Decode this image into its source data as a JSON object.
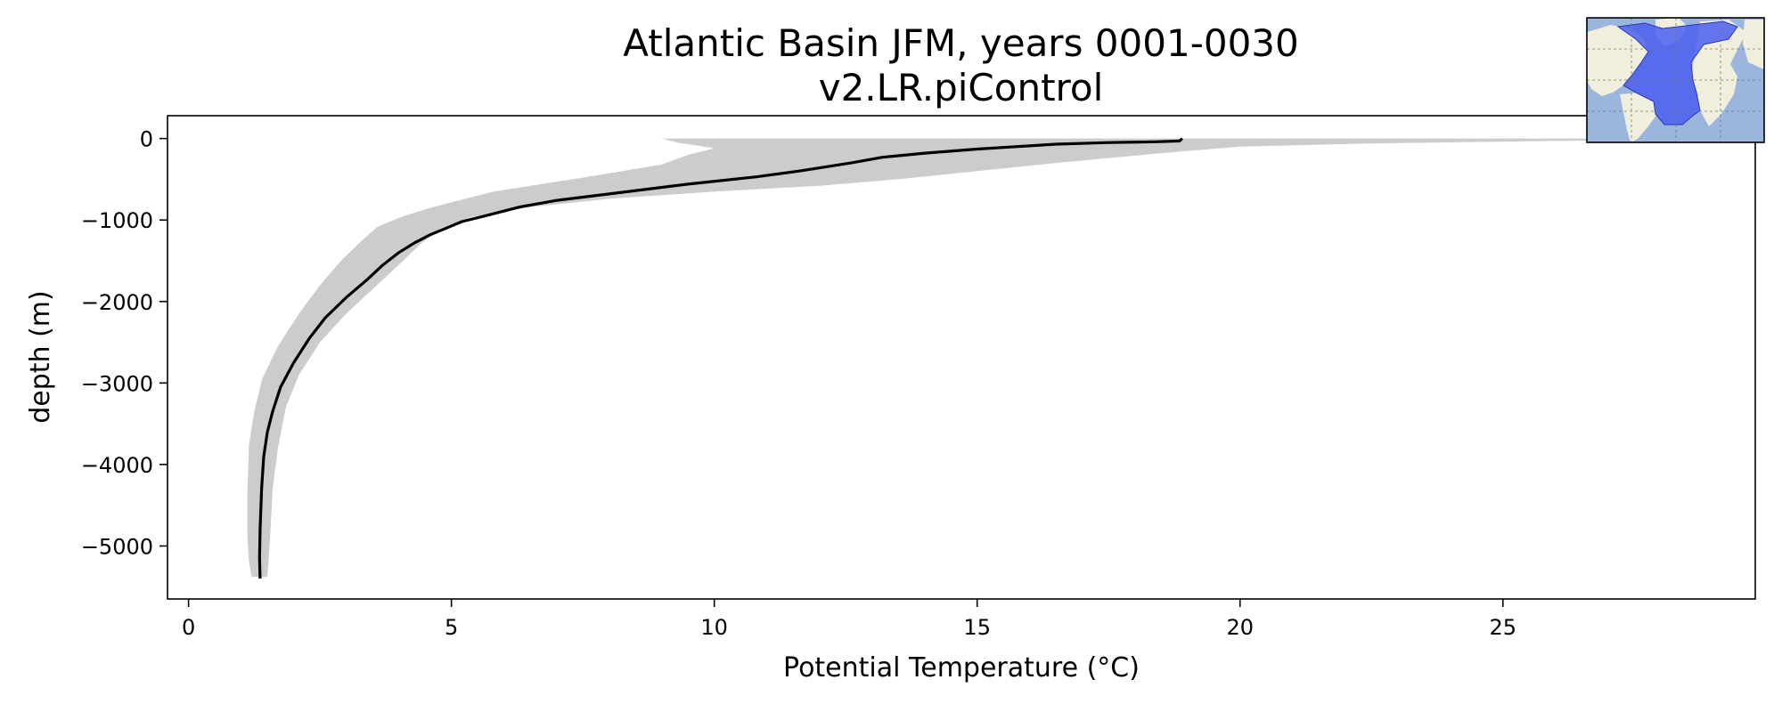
{
  "chart_data": {
    "type": "line",
    "title": "Atlantic Basin JFM, years 0001-0030",
    "subtitle": "v2.LR.piControl",
    "xlabel": "Potential Temperature (°C)",
    "ylabel": "depth (m)",
    "xlim": [
      -0.4,
      29.8
    ],
    "ylim": [
      -5650,
      280
    ],
    "xticks": [
      0,
      5,
      10,
      15,
      20,
      25
    ],
    "yticks": [
      0,
      -1000,
      -2000,
      -3000,
      -4000,
      -5000
    ],
    "xtick_labels": [
      "0",
      "5",
      "10",
      "15",
      "20",
      "25"
    ],
    "ytick_labels": [
      "0",
      "−1000",
      "−2000",
      "−3000",
      "−4000",
      "−5000"
    ],
    "grid": false,
    "series": [
      {
        "role": "mean",
        "color": "#000000",
        "points": [
          [
            18.9,
            0
          ],
          [
            18.85,
            -30
          ],
          [
            18.4,
            -40
          ],
          [
            17.5,
            -50
          ],
          [
            16.5,
            -70
          ],
          [
            15.0,
            -130
          ],
          [
            14.0,
            -180
          ],
          [
            13.2,
            -230
          ],
          [
            12.6,
            -300
          ],
          [
            11.6,
            -400
          ],
          [
            10.8,
            -470
          ],
          [
            9.5,
            -560
          ],
          [
            8.0,
            -680
          ],
          [
            7.0,
            -760
          ],
          [
            6.3,
            -840
          ],
          [
            5.7,
            -940
          ],
          [
            5.2,
            -1020
          ],
          [
            4.9,
            -1100
          ],
          [
            4.6,
            -1180
          ],
          [
            4.3,
            -1280
          ],
          [
            4.0,
            -1400
          ],
          [
            3.7,
            -1550
          ],
          [
            3.4,
            -1730
          ],
          [
            3.0,
            -1950
          ],
          [
            2.6,
            -2200
          ],
          [
            2.3,
            -2450
          ],
          [
            2.0,
            -2750
          ],
          [
            1.75,
            -3050
          ],
          [
            1.6,
            -3350
          ],
          [
            1.5,
            -3600
          ],
          [
            1.43,
            -3900
          ],
          [
            1.39,
            -4300
          ],
          [
            1.36,
            -4800
          ],
          [
            1.35,
            -5150
          ],
          [
            1.36,
            -5400
          ]
        ]
      },
      {
        "role": "range",
        "color": "#cccccc",
        "upper": [
          [
            29.5,
            0
          ],
          [
            26.0,
            -30
          ],
          [
            22.5,
            -60
          ],
          [
            20.0,
            -100
          ],
          [
            18.5,
            -180
          ],
          [
            16.5,
            -300
          ],
          [
            15.0,
            -400
          ],
          [
            13.5,
            -500
          ],
          [
            12.0,
            -580
          ],
          [
            10.0,
            -650
          ],
          [
            8.0,
            -740
          ],
          [
            6.5,
            -840
          ],
          [
            5.4,
            -960
          ],
          [
            4.8,
            -1100
          ],
          [
            4.4,
            -1300
          ],
          [
            4.0,
            -1550
          ],
          [
            3.5,
            -1850
          ],
          [
            3.0,
            -2150
          ],
          [
            2.5,
            -2500
          ],
          [
            2.1,
            -2900
          ],
          [
            1.85,
            -3300
          ],
          [
            1.7,
            -3800
          ],
          [
            1.6,
            -4300
          ],
          [
            1.55,
            -4900
          ],
          [
            1.5,
            -5380
          ]
        ],
        "lower": [
          [
            9.0,
            0
          ],
          [
            9.3,
            -50
          ],
          [
            10.0,
            -120
          ],
          [
            9.5,
            -200
          ],
          [
            9.0,
            -320
          ],
          [
            7.5,
            -480
          ],
          [
            5.8,
            -650
          ],
          [
            4.6,
            -850
          ],
          [
            4.1,
            -950
          ],
          [
            3.6,
            -1080
          ],
          [
            3.3,
            -1250
          ],
          [
            2.9,
            -1500
          ],
          [
            2.5,
            -1800
          ],
          [
            2.1,
            -2150
          ],
          [
            1.7,
            -2550
          ],
          [
            1.4,
            -2950
          ],
          [
            1.25,
            -3350
          ],
          [
            1.15,
            -3750
          ],
          [
            1.12,
            -4300
          ],
          [
            1.12,
            -4900
          ],
          [
            1.15,
            -5200
          ],
          [
            1.2,
            -5380
          ]
        ]
      }
    ]
  },
  "inset_map": {
    "ocean_color": "#9bb5dd",
    "land_color": "#f0efdd",
    "highlight_color": "#4b5ef0",
    "description": "region-map"
  }
}
